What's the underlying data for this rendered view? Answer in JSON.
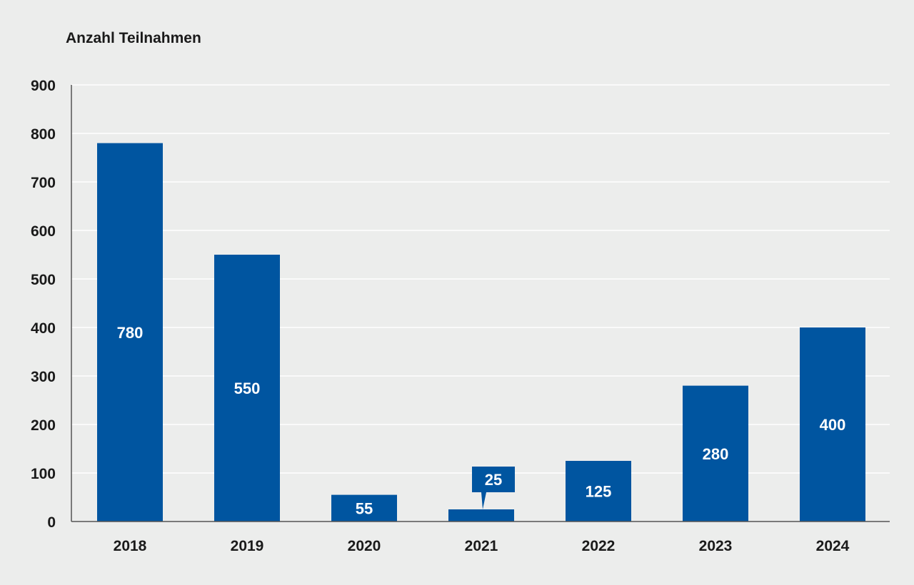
{
  "chart_data": {
    "type": "bar",
    "title": "",
    "ylabel": "Anzahl Teilnahmen",
    "xlabel": "",
    "categories": [
      "2018",
      "2019",
      "2020",
      "2021",
      "2022",
      "2023",
      "2024"
    ],
    "values": [
      780,
      550,
      55,
      25,
      125,
      280,
      400
    ],
    "data_labels": [
      "780",
      "550",
      "55",
      "25",
      "125",
      "280",
      "400"
    ],
    "ylim": [
      0,
      900
    ],
    "yticks": [
      0,
      100,
      200,
      300,
      400,
      500,
      600,
      700,
      800,
      900
    ],
    "ytick_labels": [
      "0",
      "100",
      "200",
      "300",
      "400",
      "500",
      "600",
      "700",
      "800",
      "900"
    ],
    "grid": true,
    "legend": "none",
    "colors": {
      "bar": "#0055a0",
      "grid": "#ffffff",
      "axis": "#555555",
      "background": "#ecedec"
    }
  }
}
